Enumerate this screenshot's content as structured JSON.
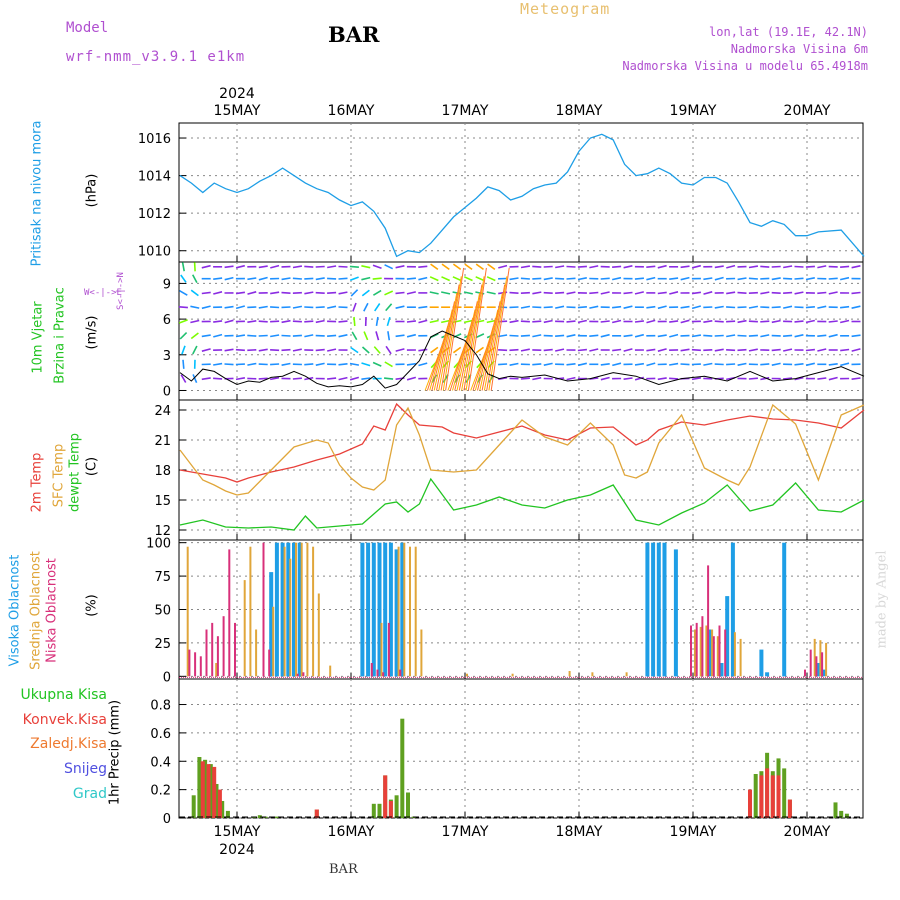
{
  "header": {
    "model_label": "Model",
    "model_name": "wrf-nmm_v3.9.1  e1km",
    "station": "BAR",
    "title": "Meteogram",
    "coords": "lon,lat (19.1E, 42.1N)",
    "elevation": "Nadmorska Visina 6m",
    "model_elevation": "Nadmorska Visina u modelu 65.4918m"
  },
  "footer": {
    "station": "BAR",
    "credit": "made by Angel"
  },
  "colors": {
    "pressure": "#1e9ee6",
    "temp2m": "#e8403a",
    "sfc_temp": "#e0a63a",
    "dewpt": "#22c422",
    "high_cloud": "#1e9ee6",
    "mid_cloud": "#e0a63a",
    "low_cloud": "#d8307a",
    "total_precip": "#5fa020",
    "conv_precip": "#e8403a",
    "frozen_precip": "#ee7a30",
    "snow": "#5050e0",
    "hail": "#30c8c8",
    "model_label": "#b050d0",
    "title": "#e8c070",
    "info": "#b050d0"
  },
  "chart_data": [
    {
      "type": "line",
      "panel": "pressure",
      "ylabel_lines": [
        "Pritisak na nivou mora",
        "(hPa)"
      ],
      "yticks": [
        1010,
        1012,
        1014,
        1016
      ],
      "ylim": [
        1009.4,
        1016.8
      ],
      "xlim": [
        0,
        6
      ],
      "x_day_labels": [
        "15MAY",
        "16MAY",
        "17MAY",
        "18MAY",
        "19MAY",
        "20MAY"
      ],
      "year_label": "2024",
      "grid": true,
      "series": [
        {
          "key": "pressure",
          "x": [
            0,
            0.1,
            0.2,
            0.3,
            0.4,
            0.5,
            0.6,
            0.7,
            0.8,
            0.9,
            1.0,
            1.1,
            1.2,
            1.3,
            1.4,
            1.5,
            1.6,
            1.7,
            1.8,
            1.9,
            2.0,
            2.1,
            2.2,
            2.3,
            2.4,
            2.5,
            2.6,
            2.7,
            2.8,
            2.9,
            3.0,
            3.1,
            3.2,
            3.3,
            3.4,
            3.5,
            3.6,
            3.7,
            3.8,
            3.9,
            4.0,
            4.1,
            4.2,
            4.3,
            4.4,
            4.5,
            4.6,
            4.7,
            4.8,
            4.9,
            5.0,
            5.1,
            5.2,
            5.3,
            5.4,
            5.5,
            5.6,
            5.8,
            6.0
          ],
          "values": [
            1014.0,
            1013.6,
            1013.1,
            1013.6,
            1013.3,
            1013.1,
            1013.3,
            1013.7,
            1014.0,
            1014.4,
            1014.0,
            1013.6,
            1013.3,
            1013.1,
            1012.7,
            1012.4,
            1012.6,
            1012.1,
            1011.2,
            1009.7,
            1010.0,
            1009.9,
            1010.4,
            1011.1,
            1011.8,
            1012.3,
            1012.8,
            1013.4,
            1013.2,
            1012.7,
            1012.9,
            1013.3,
            1013.5,
            1013.6,
            1014.2,
            1015.3,
            1016.0,
            1016.2,
            1015.9,
            1014.6,
            1014.0,
            1014.1,
            1014.4,
            1014.1,
            1013.6,
            1013.5,
            1013.9,
            1013.9,
            1013.6,
            1012.6,
            1011.5,
            1011.3,
            1011.6,
            1011.4,
            1010.8,
            1010.8,
            1011.0,
            1011.1,
            1009.7
          ]
        }
      ]
    },
    {
      "type": "line",
      "panel": "wind",
      "ylabel_lines": [
        "10m Vjetar",
        "Brzina i Pravac",
        "(m/s)"
      ],
      "compass": [
        "N",
        "W",
        "E",
        "S"
      ],
      "yticks": [
        0,
        3,
        6,
        9
      ],
      "ylim": [
        -0.8,
        10.8
      ],
      "xlim": [
        0,
        6
      ],
      "grid": true,
      "series": [
        {
          "key": "wind_speed",
          "x": [
            0,
            0.1,
            0.2,
            0.3,
            0.4,
            0.5,
            0.6,
            0.7,
            0.8,
            0.9,
            1.0,
            1.1,
            1.2,
            1.3,
            1.4,
            1.5,
            1.6,
            1.7,
            1.8,
            1.9,
            2.0,
            2.1,
            2.2,
            2.3,
            2.4,
            2.5,
            2.6,
            2.7,
            2.8,
            2.9,
            3.0,
            3.2,
            3.4,
            3.6,
            3.8,
            4.0,
            4.2,
            4.4,
            4.6,
            4.8,
            5.0,
            5.2,
            5.4,
            5.6,
            5.8,
            6.0
          ],
          "values": [
            1.5,
            0.8,
            1.8,
            1.6,
            1.0,
            0.5,
            0.8,
            0.7,
            1.1,
            1.2,
            1.6,
            1.2,
            0.6,
            0.3,
            0.4,
            0.3,
            0.5,
            1.2,
            0.2,
            0.5,
            1.5,
            2.5,
            4.5,
            5.0,
            4.6,
            4.2,
            3.0,
            1.4,
            1.0,
            1.2,
            1.1,
            1.3,
            0.8,
            1.0,
            1.5,
            1.2,
            0.5,
            1.0,
            1.2,
            0.8,
            1.6,
            0.8,
            1.0,
            1.5,
            2.0,
            1.2
          ]
        }
      ]
    },
    {
      "type": "line",
      "panel": "temperature",
      "ylabel_lines": [
        "2m Temp",
        "SFC Temp",
        "dewpt Temp",
        "(C)"
      ],
      "yticks": [
        12,
        15,
        18,
        21,
        24
      ],
      "ylim": [
        11.0,
        25.0
      ],
      "xlim": [
        0,
        6
      ],
      "grid": true,
      "series": [
        {
          "key": "temp2m",
          "x": [
            0,
            0.2,
            0.4,
            0.5,
            0.6,
            0.8,
            1.0,
            1.2,
            1.4,
            1.6,
            1.7,
            1.8,
            1.9,
            2.0,
            2.1,
            2.3,
            2.4,
            2.6,
            2.8,
            3.0,
            3.2,
            3.4,
            3.6,
            3.8,
            4.0,
            4.1,
            4.2,
            4.4,
            4.6,
            4.8,
            5.0,
            5.2,
            5.4,
            5.6,
            5.8,
            6.0
          ],
          "values": [
            18.0,
            17.6,
            17.2,
            16.8,
            17.2,
            17.8,
            18.3,
            19.0,
            19.6,
            20.6,
            22.4,
            22.0,
            24.6,
            23.5,
            22.5,
            22.3,
            21.7,
            21.2,
            21.8,
            22.4,
            21.5,
            21.0,
            22.2,
            22.3,
            20.5,
            21.0,
            22.0,
            22.8,
            22.5,
            23.0,
            23.4,
            23.1,
            23.0,
            22.7,
            22.2,
            24.0
          ]
        },
        {
          "key": "sfc_temp",
          "x": [
            0,
            0.1,
            0.2,
            0.3,
            0.4,
            0.5,
            0.6,
            0.8,
            1.0,
            1.2,
            1.3,
            1.4,
            1.5,
            1.6,
            1.7,
            1.8,
            1.9,
            2.0,
            2.1,
            2.2,
            2.4,
            2.6,
            2.8,
            3.0,
            3.2,
            3.4,
            3.6,
            3.8,
            3.9,
            4.0,
            4.1,
            4.2,
            4.4,
            4.6,
            4.8,
            4.9,
            5.0,
            5.2,
            5.4,
            5.6,
            5.8,
            6.0
          ],
          "values": [
            20.0,
            18.5,
            17.0,
            16.5,
            15.9,
            15.5,
            15.7,
            18.0,
            20.3,
            21.0,
            20.7,
            18.5,
            17.2,
            16.3,
            16.0,
            17.0,
            22.5,
            24.2,
            21.5,
            18.0,
            17.8,
            18.0,
            20.5,
            23.0,
            21.3,
            20.5,
            22.7,
            20.5,
            17.5,
            17.2,
            17.8,
            20.7,
            23.5,
            18.2,
            17.0,
            16.5,
            18.3,
            24.5,
            22.6,
            17.0,
            23.5,
            24.5
          ]
        },
        {
          "key": "dewpt",
          "x": [
            0,
            0.2,
            0.4,
            0.6,
            0.8,
            1.0,
            1.1,
            1.2,
            1.4,
            1.6,
            1.8,
            1.9,
            2.0,
            2.1,
            2.2,
            2.4,
            2.6,
            2.8,
            3.0,
            3.2,
            3.4,
            3.6,
            3.8,
            4.0,
            4.2,
            4.4,
            4.6,
            4.8,
            5.0,
            5.2,
            5.4,
            5.6,
            5.8,
            6.0
          ],
          "values": [
            12.5,
            13.0,
            12.3,
            12.2,
            12.3,
            12.0,
            13.4,
            12.2,
            12.4,
            12.6,
            14.6,
            14.8,
            13.8,
            14.6,
            17.1,
            14.0,
            14.5,
            15.3,
            14.5,
            14.2,
            15.0,
            15.5,
            16.5,
            13.0,
            12.5,
            13.7,
            14.7,
            16.5,
            13.9,
            14.5,
            16.7,
            14.0,
            13.8,
            15.0
          ]
        }
      ]
    },
    {
      "type": "bar",
      "panel": "cloud",
      "ylabel_lines": [
        "Visoka Oblacnost",
        "Srednja Oblacnost",
        "Niska  Oblacnost",
        "(%)"
      ],
      "yticks": [
        0,
        25,
        50,
        75,
        100
      ],
      "ylim": [
        -2,
        102
      ],
      "xlim": [
        0,
        6
      ],
      "grid": true,
      "series": [
        {
          "key": "high_cloud",
          "x": [
            0.8,
            0.85,
            0.9,
            0.95,
            1.0,
            1.05,
            1.6,
            1.65,
            1.7,
            1.75,
            1.8,
            1.85,
            1.9,
            1.95,
            4.1,
            4.15,
            4.2,
            4.25,
            4.35,
            4.65,
            4.75,
            4.8,
            4.85,
            5.1,
            5.15,
            5.3,
            5.6,
            5.65
          ],
          "values": [
            78,
            100,
            100,
            100,
            100,
            100,
            100,
            100,
            100,
            100,
            100,
            100,
            95,
            100,
            100,
            100,
            100,
            100,
            95,
            35,
            10,
            60,
            100,
            20,
            3,
            100,
            10,
            5
          ]
        },
        {
          "key": "mid_cloud",
          "x": [
            0.05,
            0.3,
            0.55,
            0.6,
            0.65,
            0.8,
            0.9,
            0.95,
            1.0,
            1.05,
            1.1,
            1.15,
            1.2,
            1.3,
            1.75,
            1.9,
            1.95,
            2.0,
            2.05,
            2.1,
            2.5,
            2.9,
            3.4,
            3.6,
            3.9,
            4.5,
            4.55,
            4.6,
            4.65,
            4.7,
            4.85,
            4.9,
            5.55,
            5.6,
            5.65
          ],
          "values": [
            97,
            10,
            72,
            97,
            35,
            52,
            97,
            88,
            100,
            100,
            100,
            97,
            62,
            8,
            40,
            97,
            100,
            97,
            97,
            35,
            2,
            2,
            4,
            3,
            3,
            35,
            37,
            38,
            35,
            30,
            33,
            28,
            28,
            27,
            25
          ]
        },
        {
          "key": "low_cloud",
          "x": [
            0.1,
            0.15,
            0.2,
            0.25,
            0.3,
            0.35,
            0.4,
            0.45,
            0.5,
            0.75,
            0.8,
            1.05,
            1.1,
            1.7,
            1.75,
            1.8,
            1.85,
            1.95,
            4.5,
            4.55,
            4.6,
            4.65,
            4.7,
            4.75,
            4.8,
            5.5,
            5.55,
            5.6,
            5.65
          ],
          "values": [
            20,
            18,
            15,
            35,
            40,
            30,
            45,
            95,
            40,
            100,
            20,
            2,
            3,
            10,
            5,
            3,
            40,
            5,
            38,
            40,
            45,
            83,
            30,
            38,
            35,
            5,
            20,
            15,
            18
          ]
        }
      ]
    },
    {
      "type": "bar",
      "panel": "precipitation",
      "ylabel_lines": [
        "1hr Precip (mm)"
      ],
      "legend": [
        "Ukupna  Kisa",
        "Konvek.Kisa",
        "Zaledj.Kisa",
        "Snijeg",
        "Grad"
      ],
      "yticks": [
        0,
        0.2,
        0.4,
        0.6,
        0.8
      ],
      "ylim": [
        0,
        0.98
      ],
      "xlim": [
        0,
        6
      ],
      "grid": true,
      "series": [
        {
          "key": "total_precip",
          "x": [
            0.12,
            0.17,
            0.22,
            0.27,
            0.32,
            0.37,
            0.42,
            0.65,
            0.7,
            0.75,
            0.85,
            1.2,
            1.7,
            1.75,
            1.8,
            1.85,
            1.9,
            1.95,
            2.0,
            2.05,
            5.0,
            5.05,
            5.1,
            5.15,
            5.2,
            5.25,
            5.3,
            5.35,
            5.4,
            5.45,
            5.75,
            5.8,
            5.85
          ],
          "values": [
            0.16,
            0.43,
            0.41,
            0.38,
            0.24,
            0.12,
            0.05,
            0.01,
            0.02,
            0.01,
            0.01,
            0.06,
            0.1,
            0.1,
            0.3,
            0.13,
            0.16,
            0.7,
            0.18,
            0.01,
            0.2,
            0.31,
            0.33,
            0.46,
            0.33,
            0.42,
            0.35,
            0.13,
            0.0,
            0.0,
            0.11,
            0.05,
            0.03
          ]
        },
        {
          "key": "conv_precip",
          "x": [
            0.2,
            0.25,
            0.3,
            0.35,
            1.2,
            1.8,
            1.85,
            5.0,
            5.1,
            5.15,
            5.2,
            5.25,
            5.35
          ],
          "values": [
            0.4,
            0.38,
            0.36,
            0.2,
            0.06,
            0.3,
            0.12,
            0.2,
            0.3,
            0.35,
            0.3,
            0.3,
            0.13
          ]
        }
      ]
    }
  ]
}
